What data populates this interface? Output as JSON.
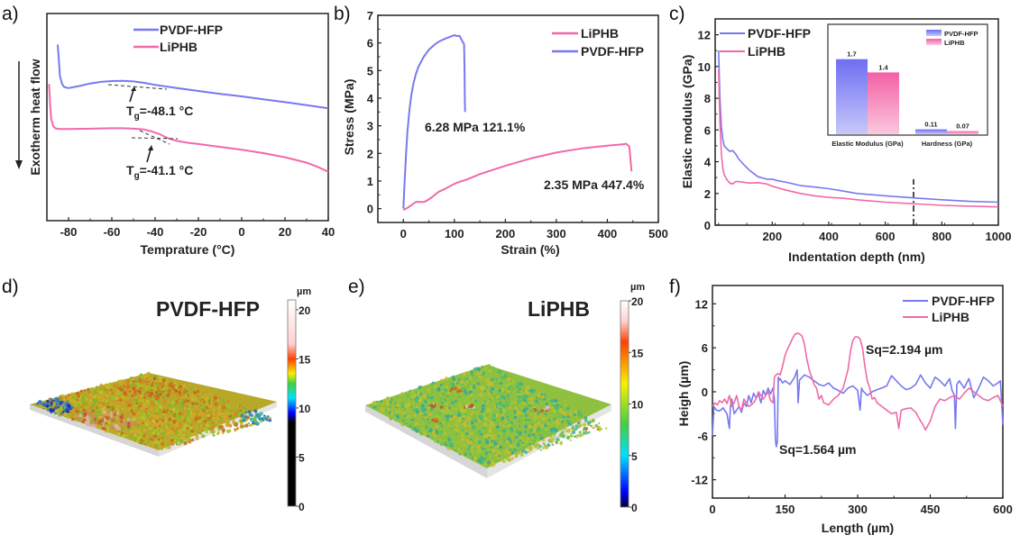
{
  "colors": {
    "pvdf": "#7878f0",
    "liphb": "#f06aa8",
    "axis": "#222222"
  },
  "chart_data": [
    {
      "panel": "a)",
      "type": "line",
      "xlabel": "Temprature (°C)",
      "ylabel": "Exotherm heat flow",
      "xlim": [
        -90,
        40
      ],
      "xticks": [
        -80,
        -60,
        -40,
        -20,
        0,
        20,
        40
      ],
      "yticks": [],
      "y_units": "arbitrary (normalized offset)",
      "ylim": [
        0,
        10
      ],
      "legend": [
        "PVDF-HFP",
        "LiPHB"
      ],
      "legend_position": "top-center",
      "series": [
        {
          "name": "PVDF-HFP",
          "x": [
            -85,
            -84.5,
            -84,
            -83,
            -82,
            -80,
            -75,
            -70,
            -65,
            -60,
            -55,
            -50,
            -45,
            -40,
            -30,
            -20,
            -10,
            0,
            10,
            20,
            30,
            40
          ],
          "y": [
            8.5,
            7.8,
            7.0,
            6.6,
            6.45,
            6.4,
            6.5,
            6.62,
            6.7,
            6.74,
            6.75,
            6.72,
            6.65,
            6.55,
            6.4,
            6.26,
            6.12,
            6.0,
            5.86,
            5.72,
            5.58,
            5.42
          ]
        },
        {
          "name": "LiPHB",
          "x": [
            -89,
            -88.5,
            -88,
            -87,
            -86,
            -84,
            -80,
            -70,
            -60,
            -55,
            -50,
            -45,
            -42,
            -38,
            -34,
            -30,
            -25,
            -20,
            -10,
            0,
            10,
            20,
            30,
            35,
            40
          ],
          "y": [
            6.6,
            5.6,
            4.9,
            4.55,
            4.45,
            4.42,
            4.42,
            4.44,
            4.46,
            4.46,
            4.44,
            4.4,
            4.32,
            4.18,
            3.98,
            3.85,
            3.76,
            3.7,
            3.56,
            3.42,
            3.26,
            3.06,
            2.8,
            2.6,
            2.36
          ]
        }
      ],
      "annotations": [
        {
          "text_main": "T",
          "text_sub": "g",
          "text_rest": "=-48.1 °C",
          "x": -48.1,
          "series": "PVDF-HFP"
        },
        {
          "text_main": "T",
          "text_sub": "g",
          "text_rest": "=-41.1 °C",
          "x": -41.1,
          "series": "LiPHB"
        }
      ]
    },
    {
      "panel": "b)",
      "type": "line",
      "xlabel": "Strain (%)",
      "ylabel": "Stress (MPa)",
      "xlim": [
        -50,
        500
      ],
      "ylim": [
        -0.5,
        7
      ],
      "xticks": [
        0,
        100,
        200,
        300,
        400,
        500
      ],
      "yticks": [
        0,
        1,
        2,
        3,
        4,
        5,
        6,
        7
      ],
      "legend": [
        "LiPHB",
        "PVDF-HFP"
      ],
      "legend_position": "top-right",
      "series": [
        {
          "name": "PVDF-HFP",
          "x": [
            0,
            2,
            5,
            8,
            12,
            16,
            20,
            25,
            30,
            40,
            50,
            60,
            70,
            80,
            90,
            100,
            105,
            110,
            113,
            116,
            119,
            120,
            120.5,
            121.1
          ],
          "y": [
            0,
            0.8,
            1.9,
            2.8,
            3.6,
            4.15,
            4.55,
            4.9,
            5.15,
            5.5,
            5.75,
            5.92,
            6.05,
            6.14,
            6.21,
            6.28,
            6.25,
            6.26,
            6.15,
            6.05,
            5.95,
            5.0,
            4.0,
            3.5
          ]
        },
        {
          "name": "LiPHB",
          "x": [
            0,
            10,
            20,
            25,
            30,
            40,
            45,
            55,
            65,
            70,
            80,
            90,
            100,
            110,
            125,
            150,
            175,
            200,
            250,
            300,
            350,
            400,
            430,
            437,
            443,
            447.4
          ],
          "y": [
            -0.05,
            0.05,
            0.18,
            0.25,
            0.24,
            0.24,
            0.28,
            0.4,
            0.55,
            0.62,
            0.7,
            0.8,
            0.9,
            0.97,
            1.06,
            1.25,
            1.4,
            1.55,
            1.82,
            2.03,
            2.18,
            2.28,
            2.33,
            2.35,
            2.25,
            1.35
          ]
        }
      ],
      "annotations": [
        {
          "text": "6.28 MPa 121.1%",
          "x": 105,
          "y": 3.0
        },
        {
          "text": "2.35 MPa 447.4%",
          "x": 348,
          "y": 0.9
        }
      ]
    },
    {
      "panel": "c)",
      "type": "line",
      "xlabel": "Indentation depth (nm)",
      "ylabel": "Elastic modulus (GPa)",
      "xlim": [
        10,
        1000
      ],
      "ylim": [
        0,
        13
      ],
      "xticks": [
        200,
        400,
        600,
        800,
        1000
      ],
      "yticks": [
        0,
        2,
        4,
        6,
        8,
        10,
        12
      ],
      "vline_x": 700,
      "legend": [
        "PVDF-HFP",
        "LiPHB"
      ],
      "legend_position": "top-left",
      "series": [
        {
          "name": "PVDF-HFP",
          "x": [
            10,
            15,
            20,
            25,
            30,
            40,
            50,
            60,
            70,
            80,
            100,
            120,
            150,
            180,
            200,
            220,
            250,
            300,
            350,
            400,
            450,
            500,
            600,
            700,
            800,
            900,
            1000
          ],
          "y": [
            11.0,
            8.0,
            6.2,
            5.4,
            5.0,
            4.8,
            4.65,
            4.7,
            4.5,
            4.2,
            3.8,
            3.45,
            3.05,
            2.9,
            2.9,
            2.8,
            2.7,
            2.5,
            2.4,
            2.3,
            2.15,
            2.0,
            1.85,
            1.72,
            1.6,
            1.5,
            1.45
          ]
        },
        {
          "name": "LiPHB",
          "x": [
            10,
            15,
            20,
            25,
            30,
            40,
            50,
            60,
            70,
            80,
            100,
            120,
            150,
            180,
            200,
            250,
            300,
            350,
            400,
            450,
            500,
            600,
            700,
            800,
            900,
            1000
          ],
          "y": [
            9.8,
            6.5,
            4.5,
            3.6,
            3.2,
            2.85,
            2.65,
            2.6,
            2.75,
            2.75,
            2.7,
            2.65,
            2.68,
            2.6,
            2.45,
            2.2,
            2.0,
            1.85,
            1.75,
            1.7,
            1.6,
            1.45,
            1.35,
            1.25,
            1.2,
            1.15
          ]
        }
      ],
      "inset": {
        "type": "bar",
        "categories": [
          "Elastic Modulus (GPa)",
          "Hardness (GPa)"
        ],
        "series": [
          {
            "name": "PVDF-HFP",
            "values": [
              1.7,
              0.11
            ],
            "labels": [
              "1.7",
              "0.11"
            ]
          },
          {
            "name": "LiPHB",
            "values": [
              1.4,
              0.07
            ],
            "labels": [
              "1.4",
              "0.07"
            ]
          }
        ],
        "legend": [
          "PVDF-HFP",
          "LiPHB"
        ],
        "legend_position": "top-right",
        "ylim": [
          0,
          2.0
        ]
      }
    },
    {
      "panel": "d)",
      "type": "heatmap",
      "title": "PVDF-HFP",
      "colorbar_unit": "µm",
      "colorbar_range": [
        0,
        21
      ],
      "colorbar_ticks": [
        0,
        5,
        10,
        15,
        20
      ],
      "colorbar_stops": [
        {
          "value": 0,
          "color": "#000000"
        },
        {
          "value": 8.5,
          "color": "#000000"
        },
        {
          "value": 9.5,
          "color": "#0000ff"
        },
        {
          "value": 11,
          "color": "#00e0ff"
        },
        {
          "value": 12.5,
          "color": "#40d040"
        },
        {
          "value": 13.5,
          "color": "#f8f000"
        },
        {
          "value": 15,
          "color": "#ff4000"
        },
        {
          "value": 16.5,
          "color": "#ffd0d0"
        },
        {
          "value": 21,
          "color": "#ffffff"
        }
      ]
    },
    {
      "panel": "e)",
      "type": "heatmap",
      "title": "LiPHB",
      "colorbar_unit": "µm",
      "colorbar_range": [
        0,
        20
      ],
      "colorbar_ticks": [
        0,
        5,
        10,
        15,
        20
      ],
      "colorbar_stops": [
        {
          "value": 0,
          "color": "#000030"
        },
        {
          "value": 1.5,
          "color": "#0000ff"
        },
        {
          "value": 5,
          "color": "#00e0ff"
        },
        {
          "value": 8,
          "color": "#40d040"
        },
        {
          "value": 12,
          "color": "#f8f000"
        },
        {
          "value": 16,
          "color": "#ff4000"
        },
        {
          "value": 18,
          "color": "#ffd0d0"
        },
        {
          "value": 20,
          "color": "#ffffff"
        }
      ]
    },
    {
      "panel": "f)",
      "type": "line",
      "xlabel": "Length (µm)",
      "ylabel": "Heigh (µm)",
      "xlim": [
        0,
        600
      ],
      "ylim": [
        -14.5,
        14.5
      ],
      "xticks": [
        0,
        150,
        300,
        450,
        600
      ],
      "yticks": [
        -12,
        -6,
        0,
        6,
        12
      ],
      "legend": [
        "PVDF-HFP",
        "LiPHB"
      ],
      "legend_position": "top-right",
      "series": [
        {
          "name": "PVDF-HFP",
          "x": [
            0,
            3,
            8,
            15,
            22,
            30,
            35,
            37,
            40,
            45,
            50,
            55,
            60,
            65,
            70,
            75,
            80,
            85,
            90,
            95,
            100,
            105,
            110,
            115,
            120,
            125,
            128,
            130,
            132,
            134,
            136,
            138,
            140,
            145,
            150,
            160,
            170,
            175,
            177,
            180,
            190,
            200,
            210,
            220,
            230,
            240,
            250,
            260,
            270,
            280,
            290,
            300,
            305,
            308,
            310,
            320,
            330,
            340,
            350,
            360,
            370,
            380,
            390,
            400,
            410,
            420,
            430,
            440,
            450,
            460,
            470,
            480,
            490,
            495,
            500,
            502,
            505,
            510,
            520,
            530,
            540,
            550,
            560,
            570,
            580,
            590,
            595,
            598,
            600
          ],
          "y": [
            -6,
            -2,
            -2.5,
            -2.6,
            -2.2,
            -3,
            -5,
            -2,
            -1,
            -3,
            -2.5,
            -2,
            -2.8,
            -1.5,
            -2,
            -0.5,
            -1.5,
            -0.2,
            -0.8,
            -0.3,
            -1.5,
            0.2,
            -0.5,
            0.5,
            -0.3,
            0.5,
            -1.0,
            -6.5,
            -7.5,
            -6.8,
            2.0,
            1.6,
            1.8,
            1.2,
            1.5,
            1.0,
            2.0,
            3.0,
            -1.5,
            1.6,
            2.3,
            2.0,
            1.5,
            1.0,
            0.8,
            1.2,
            0.5,
            0.2,
            -0.2,
            0.5,
            0.8,
            0.2,
            -2.5,
            0.5,
            0.2,
            -0.5,
            0.0,
            0.3,
            0.5,
            0.8,
            2.2,
            1.5,
            0.8,
            0.3,
            0.5,
            1.0,
            2.3,
            1.2,
            0.5,
            2.0,
            1.5,
            0.8,
            1.8,
            0.2,
            -0.5,
            -5.0,
            1.0,
            1.5,
            0.5,
            1.8,
            -0.8,
            0.5,
            2.0,
            1.5,
            0.8,
            1.2,
            1.5,
            -2.0,
            -4.5
          ]
        },
        {
          "name": "LiPHB",
          "x": [
            0,
            5,
            10,
            15,
            20,
            25,
            30,
            35,
            40,
            45,
            50,
            55,
            60,
            65,
            70,
            75,
            80,
            85,
            90,
            95,
            100,
            105,
            110,
            115,
            120,
            125,
            128,
            130,
            135,
            140,
            145,
            150,
            155,
            160,
            165,
            170,
            175,
            180,
            185,
            190,
            195,
            200,
            205,
            210,
            215,
            220,
            225,
            230,
            240,
            250,
            260,
            270,
            280,
            285,
            290,
            295,
            300,
            305,
            310,
            315,
            320,
            325,
            330,
            335,
            340,
            350,
            360,
            370,
            380,
            385,
            390,
            400,
            410,
            420,
            430,
            435,
            440,
            450,
            460,
            470,
            480,
            490,
            500,
            510,
            520,
            530,
            540,
            550,
            560,
            570,
            580,
            590,
            600
          ],
          "y": [
            -2,
            -1.5,
            -1.8,
            -1.2,
            -1.5,
            -1.0,
            -1.6,
            -0.5,
            -2.0,
            -1.5,
            -0.5,
            -2.0,
            -2.5,
            -1.0,
            -1.5,
            -2.0,
            -1.8,
            -1.5,
            -1.0,
            0.0,
            -0.5,
            -1.0,
            -0.5,
            0.0,
            -1.2,
            -1.5,
            2.0,
            2.2,
            2.5,
            2.3,
            3.5,
            5.0,
            5.8,
            6.5,
            7.2,
            7.8,
            8.0,
            7.9,
            7.6,
            6.5,
            4.5,
            3.0,
            2.0,
            1.0,
            0.5,
            -1.0,
            -0.5,
            -1.5,
            -1.8,
            -1.0,
            -0.5,
            0.5,
            3.0,
            5.5,
            7.0,
            7.5,
            7.5,
            7.2,
            6.0,
            3.5,
            1.5,
            0.5,
            -1.0,
            -0.8,
            -1.5,
            -2.0,
            -2.5,
            -3.0,
            -2.8,
            -5.0,
            -2.5,
            -2.3,
            -2.2,
            -2.8,
            -4.0,
            -4.5,
            -5.2,
            -4.0,
            -2.0,
            -1.0,
            -1.2,
            -0.8,
            -0.5,
            -1.0,
            -0.2,
            0.5,
            0.0,
            -0.5,
            -1.0,
            -1.2,
            -0.8,
            -0.5,
            -2.0
          ]
        }
      ],
      "annotations": [
        {
          "text": "Sq=2.194 µm",
          "x": 315,
          "y": 5.8
        },
        {
          "text": "Sq=1.564 µm",
          "x": 140,
          "y": -7.5
        }
      ]
    }
  ]
}
